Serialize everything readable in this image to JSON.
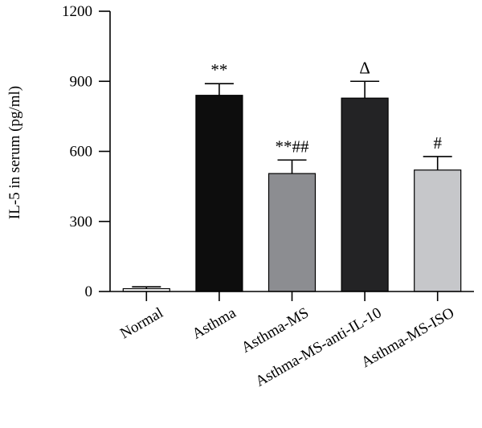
{
  "chart_data": {
    "type": "bar",
    "title": "",
    "xlabel": "",
    "ylabel": "IL-5 in serum (pg/ml)",
    "ylim": [
      0,
      1200
    ],
    "yticks": [
      0,
      300,
      600,
      900,
      1200
    ],
    "grid": false,
    "categories": [
      "Normal",
      "Asthma",
      "Asthma-MS",
      "Asthma-MS-anti-IL-10",
      "Asthma-MS-ISO"
    ],
    "values": [
      12,
      840,
      505,
      828,
      520
    ],
    "errors": [
      8,
      50,
      58,
      72,
      58
    ],
    "colors": [
      "#ffffff",
      "#0d0d0d",
      "#8c8d91",
      "#232325",
      "#c6c7ca"
    ],
    "annotations": [
      "",
      "**",
      "**##",
      "Δ",
      "#"
    ]
  }
}
